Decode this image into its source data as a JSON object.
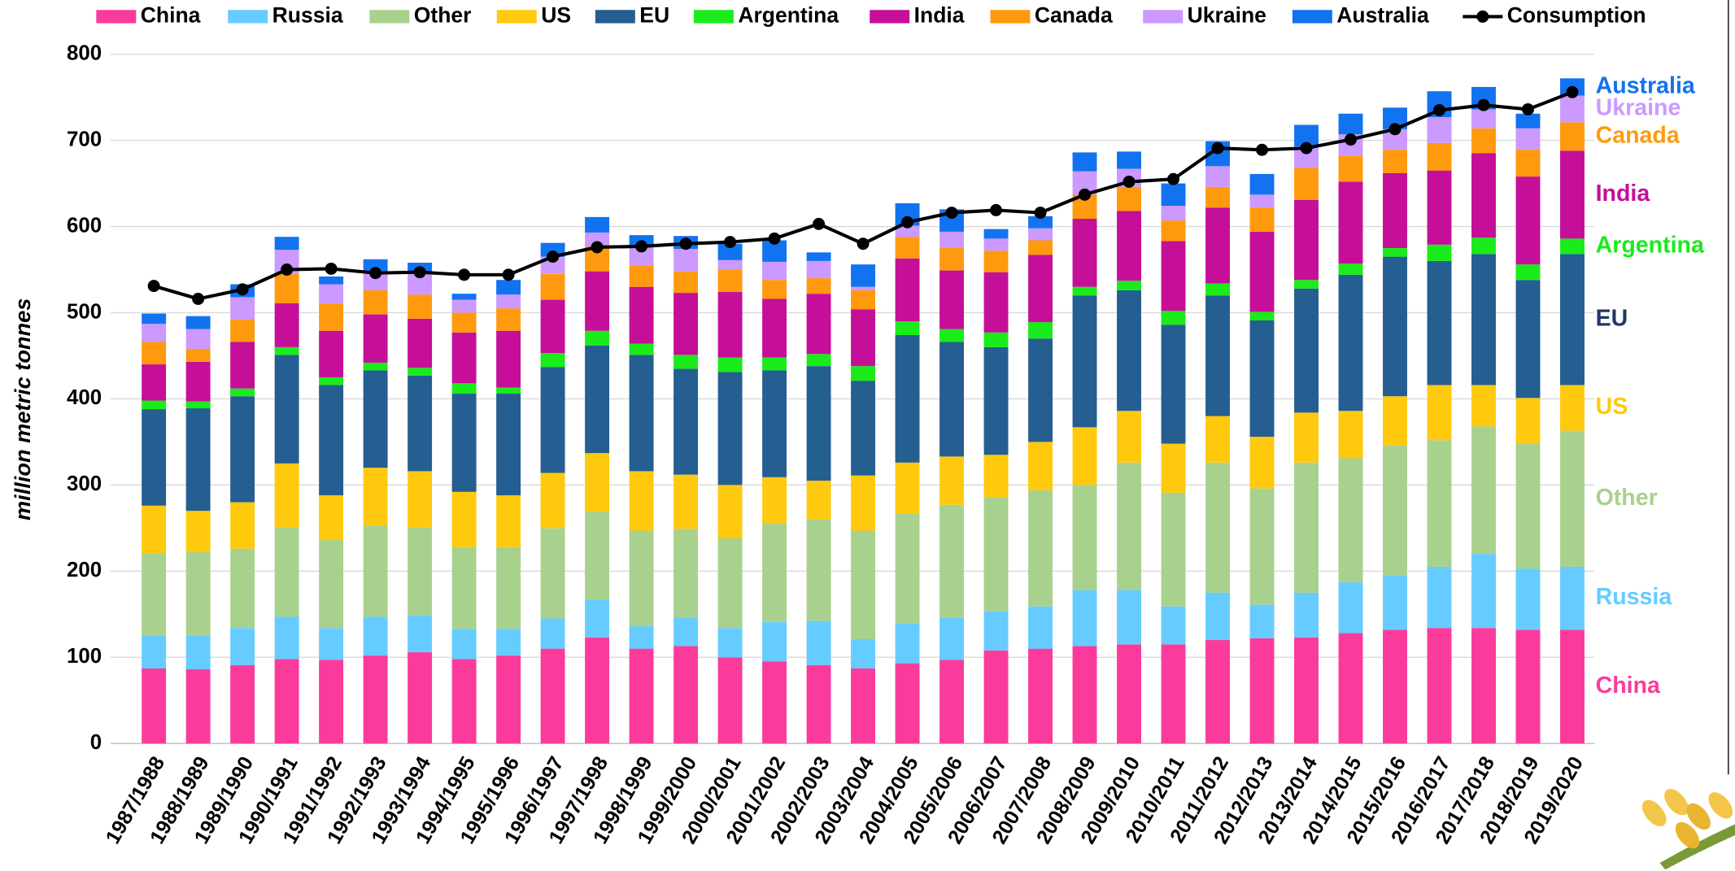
{
  "chart_data": {
    "type": "bar",
    "stacked": true,
    "grid": true,
    "y_label": "million metric tonnes",
    "ylim": [
      0,
      800
    ],
    "yticks": [
      0,
      100,
      200,
      300,
      400,
      500,
      600,
      700,
      800
    ],
    "categories": [
      "1987/1988",
      "1988/1989",
      "1989/1990",
      "1990/1991",
      "1991/1992",
      "1992/1993",
      "1993/1994",
      "1994/1995",
      "1995/1996",
      "1996/1997",
      "1997/1998",
      "1998/1999",
      "1999/2000",
      "2000/2001",
      "2001/2002",
      "2002/2003",
      "2003/2004",
      "2004/2005",
      "2005/2006",
      "2006/2007",
      "2007/2008",
      "2008/2009",
      "2009/2010",
      "2010/2011",
      "2011/2012",
      "2012/2013",
      "2013/2014",
      "2014/2015",
      "2015/2016",
      "2016/2017",
      "2017/2018",
      "2018/2019",
      "2019/2020"
    ],
    "series": [
      {
        "name": "China",
        "color": "#fb3b9c",
        "values": [
          87,
          86,
          91,
          98,
          97,
          102,
          106,
          98,
          102,
          110,
          123,
          110,
          113,
          100,
          95,
          91,
          87,
          93,
          97,
          108,
          110,
          113,
          115,
          115,
          120,
          122,
          123,
          128,
          132,
          134,
          134,
          132,
          132
        ]
      },
      {
        "name": "Russia",
        "color": "#66ccff",
        "values": [
          38,
          39,
          43,
          49,
          37,
          45,
          43,
          35,
          31,
          35,
          44,
          26,
          33,
          34,
          46,
          51,
          34,
          46,
          49,
          45,
          49,
          65,
          63,
          44,
          55,
          39,
          52,
          59,
          63,
          71,
          86,
          71,
          73
        ]
      },
      {
        "name": "Other",
        "color": "#a9d18e",
        "values": [
          96,
          97,
          92,
          104,
          102,
          106,
          102,
          95,
          95,
          105,
          102,
          111,
          103,
          104,
          114,
          118,
          126,
          128,
          131,
          133,
          135,
          122,
          148,
          132,
          151,
          135,
          151,
          144,
          151,
          147,
          148,
          145,
          158
        ]
      },
      {
        "name": "US",
        "color": "#ffc90e",
        "values": [
          55,
          48,
          54,
          74,
          52,
          67,
          65,
          64,
          60,
          64,
          68,
          69,
          63,
          62,
          54,
          45,
          64,
          59,
          56,
          49,
          56,
          67,
          60,
          57,
          54,
          60,
          58,
          55,
          57,
          64,
          48,
          53,
          53
        ]
      },
      {
        "name": "EU",
        "color": "#255e91",
        "values": [
          112,
          119,
          123,
          126,
          128,
          113,
          111,
          114,
          118,
          123,
          125,
          135,
          123,
          131,
          124,
          133,
          110,
          148,
          133,
          125,
          120,
          153,
          140,
          138,
          140,
          135,
          144,
          158,
          162,
          144,
          152,
          137,
          152
        ]
      },
      {
        "name": "Argentina",
        "color": "#1aeb1a",
        "values": [
          10,
          8,
          9,
          9,
          9,
          9,
          9,
          12,
          7,
          16,
          17,
          13,
          16,
          17,
          15,
          14,
          17,
          16,
          15,
          17,
          19,
          10,
          11,
          16,
          14,
          10,
          10,
          13,
          10,
          19,
          19,
          18,
          18
        ]
      },
      {
        "name": "India",
        "color": "#c50f98",
        "values": [
          42,
          46,
          54,
          51,
          54,
          56,
          57,
          59,
          66,
          62,
          69,
          66,
          72,
          76,
          68,
          70,
          66,
          73,
          68,
          70,
          78,
          79,
          81,
          81,
          88,
          93,
          93,
          95,
          87,
          86,
          98,
          102,
          102
        ]
      },
      {
        "name": "Canada",
        "color": "#ff9a0e",
        "values": [
          26,
          15,
          26,
          34,
          32,
          28,
          28,
          23,
          26,
          30,
          29,
          25,
          25,
          26,
          22,
          18,
          22,
          25,
          26,
          25,
          17,
          28,
          28,
          24,
          24,
          28,
          37,
          30,
          27,
          32,
          29,
          31,
          33
        ]
      },
      {
        "name": "Ukraine",
        "color": "#cc99ff",
        "values": [
          21,
          23,
          26,
          28,
          22,
          22,
          25,
          15,
          16,
          20,
          16,
          22,
          26,
          11,
          21,
          20,
          4,
          13,
          19,
          14,
          14,
          27,
          21,
          17,
          24,
          15,
          25,
          25,
          24,
          30,
          22,
          25,
          31
        ]
      },
      {
        "name": "Australia",
        "color": "#1273f0",
        "values": [
          12,
          15,
          15,
          15,
          9,
          14,
          12,
          7,
          17,
          16,
          18,
          13,
          15,
          19,
          25,
          10,
          26,
          26,
          26,
          11,
          14,
          22,
          20,
          26,
          29,
          24,
          25,
          24,
          25,
          30,
          26,
          17,
          20
        ]
      },
      {
        "name": "Consumption",
        "color": "#000000",
        "type": "line",
        "values": [
          531,
          516,
          527,
          550,
          551,
          546,
          547,
          544,
          544,
          565,
          576,
          577,
          580,
          582,
          586,
          603,
          580,
          605,
          616,
          619,
          616,
          637,
          652,
          655,
          691,
          689,
          691,
          701,
          713,
          735,
          741,
          736,
          756
        ]
      }
    ]
  }
}
